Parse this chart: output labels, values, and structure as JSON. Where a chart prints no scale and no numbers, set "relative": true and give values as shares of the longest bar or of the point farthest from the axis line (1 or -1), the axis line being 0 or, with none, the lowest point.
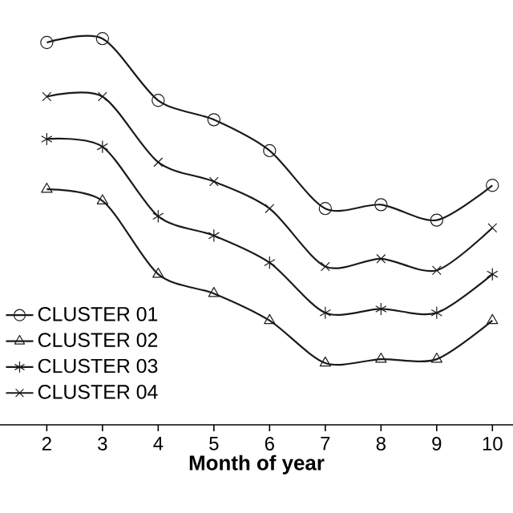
{
  "chart_data": {
    "type": "line",
    "xlabel": "Month of year",
    "relative": true,
    "legend": "bottom left",
    "line_style": "solid",
    "x": [
      2,
      3,
      4,
      5,
      6,
      7,
      8,
      9,
      10
    ],
    "xlim": [
      1.16,
      10.37
    ],
    "xticks": [
      2,
      3,
      4,
      5,
      6,
      7,
      8,
      9,
      10
    ],
    "series": [
      {
        "name": "CLUSTER 01",
        "color": "#1a1a1a",
        "marker": "circle",
        "values": [
          0.99,
          1.0,
          0.84,
          0.79,
          0.71,
          0.56,
          0.57,
          0.53,
          0.62
        ]
      },
      {
        "name": "CLUSTER 02",
        "color": "#1a1a1a",
        "marker": "triangle",
        "values": [
          0.61,
          0.58,
          0.39,
          0.34,
          0.27,
          0.16,
          0.17,
          0.17,
          0.27
        ]
      },
      {
        "name": "CLUSTER 03",
        "color": "#1a1a1a",
        "marker": "cross",
        "values": [
          0.74,
          0.72,
          0.54,
          0.49,
          0.42,
          0.29,
          0.3,
          0.29,
          0.39
        ]
      },
      {
        "name": "CLUSTER 04",
        "color": "#1a1a1a",
        "marker": "cross",
        "values": [
          0.85,
          0.85,
          0.68,
          0.63,
          0.56,
          0.41,
          0.43,
          0.4,
          0.51
        ]
      }
    ]
  }
}
